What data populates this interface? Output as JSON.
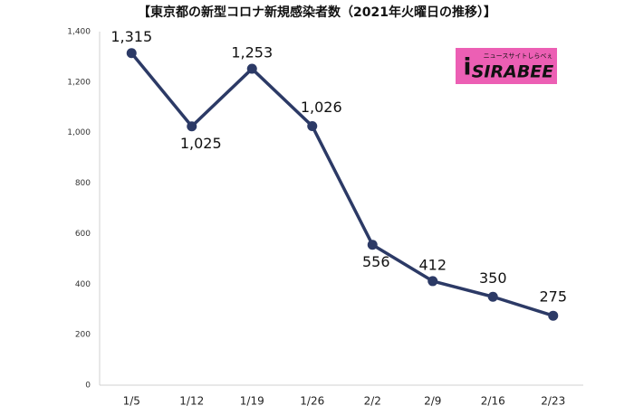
{
  "chart_data": {
    "type": "line",
    "title": "【東京都の新型コロナ新規感染者数（2021年火曜日の推移）】",
    "categories": [
      "1/5",
      "1/12",
      "1/19",
      "1/26",
      "2/2",
      "2/9",
      "2/16",
      "2/23"
    ],
    "series": [
      {
        "color": "#2c3a66",
        "values": [
          1315,
          1025,
          1253,
          1026,
          556,
          412,
          350,
          275
        ],
        "value_labels": [
          "1,315",
          "1,025",
          "1,253",
          "1,026",
          "556",
          "412",
          "350",
          "275"
        ]
      }
    ],
    "ylim": [
      0,
      1400
    ],
    "yticks": [
      0,
      200,
      400,
      600,
      800,
      {
        "value": 1000,
        "label": "1,000"
      },
      {
        "value": 1200,
        "label": "1,200"
      },
      {
        "value": 1400,
        "label": "1,400"
      }
    ],
    "grid": false
  },
  "logo": {
    "text": "SIRABEE",
    "tagline": "ニュースサイトしらべぇ"
  }
}
